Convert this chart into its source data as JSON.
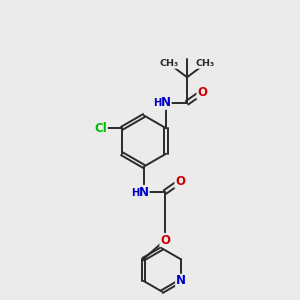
{
  "background_color": "#ebebeb",
  "bond_color": "#2a2a2a",
  "atom_colors": {
    "N": "#0000cc",
    "O": "#cc0000",
    "Cl": "#00bb00",
    "C": "#2a2a2a",
    "H": "#666666"
  },
  "bond_lw": 1.4,
  "font_size_atom": 8.5,
  "font_size_small": 7.2,
  "font_size_methyl": 6.8
}
